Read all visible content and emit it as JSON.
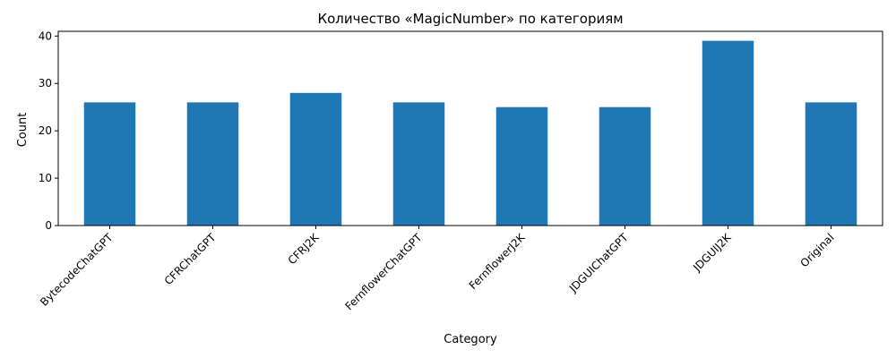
{
  "chart_data": {
    "type": "bar",
    "title": "Количество «MagicNumber» по категориям",
    "xlabel": "Category",
    "ylabel": "Count",
    "categories": [
      "BytecodeChatGPT",
      "CFRChatGPT",
      "CFRJ2K",
      "FernflowerChatGPT",
      "FernflowerJ2K",
      "JDGUIChatGPT",
      "JDGUIJ2K",
      "Original"
    ],
    "values": [
      26,
      26,
      28,
      26,
      25,
      25,
      39,
      26
    ],
    "ylim": [
      0,
      41
    ],
    "yticks": [
      0,
      10,
      20,
      30,
      40
    ],
    "grid": false,
    "legend": "none",
    "bar_color": "#1f77b4"
  }
}
